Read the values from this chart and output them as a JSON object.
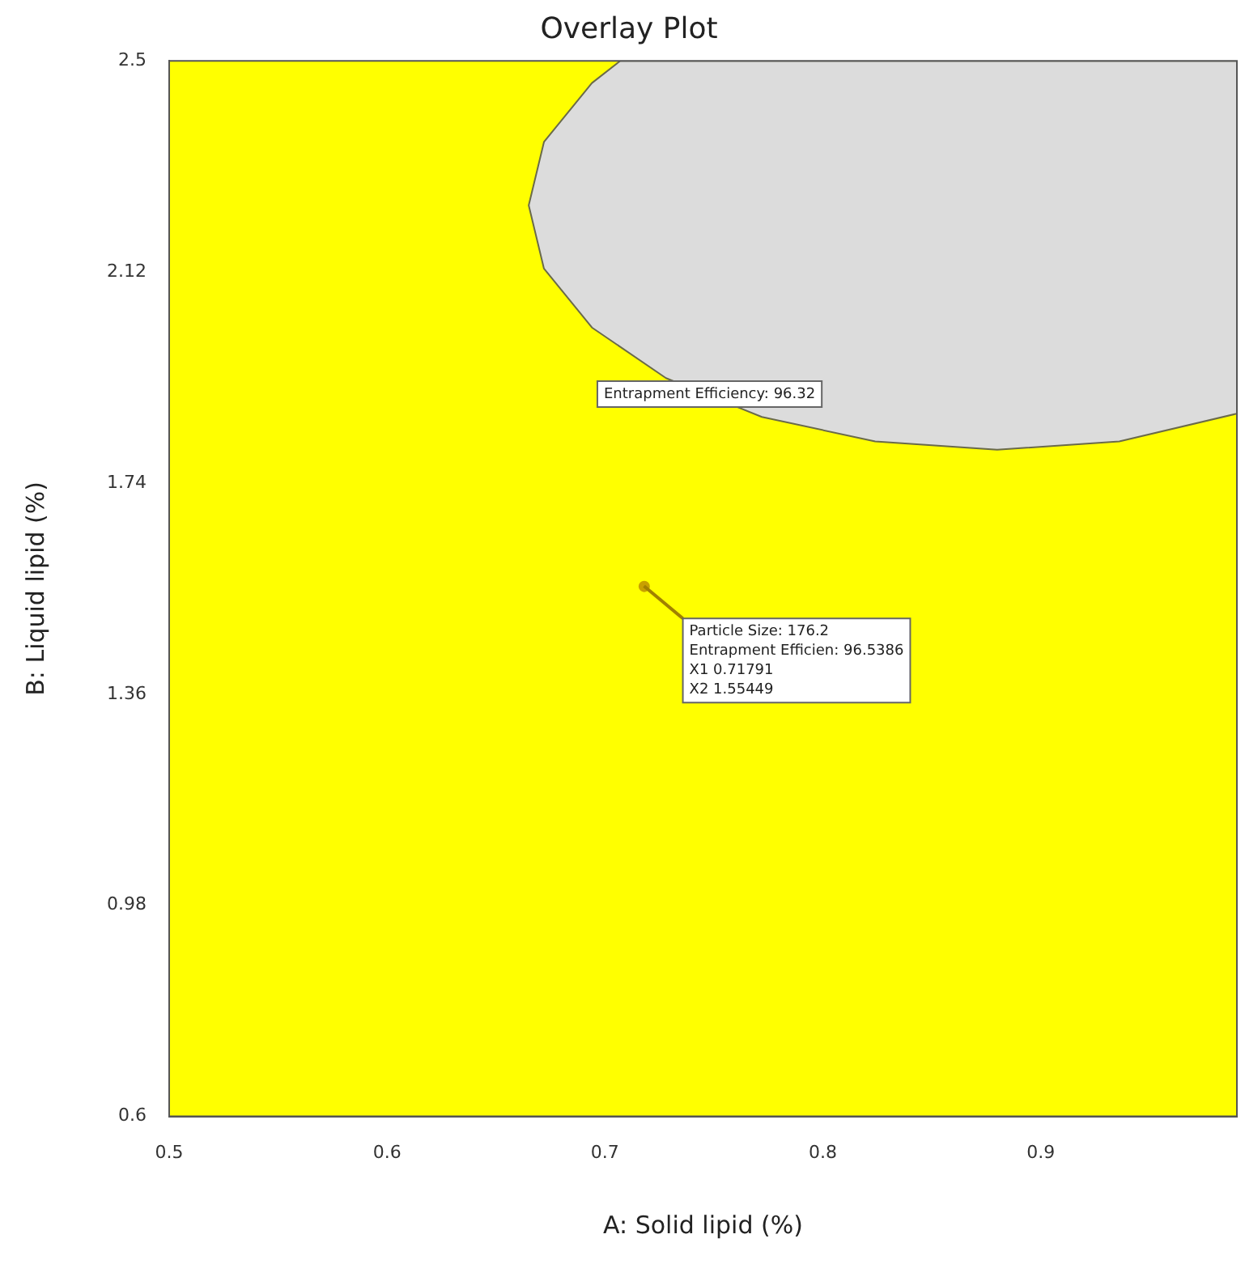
{
  "chart_data": {
    "type": "area",
    "title": "Overlay Plot",
    "xlabel": "A: Solid lipid (%)",
    "ylabel": "B: Liquid lipid (%)",
    "xlim": [
      0.5,
      0.99
    ],
    "xticks": [
      0.5,
      0.6,
      0.7,
      0.8,
      0.9
    ],
    "ylim": [
      0.6,
      2.5
    ],
    "yticks": [
      0.6,
      0.98,
      1.36,
      1.74,
      2.12,
      2.5
    ],
    "grid": false,
    "legend": false,
    "bands": [
      {
        "axis": "y",
        "from": 0.6,
        "to": 2.5,
        "color": "#ffff00"
      }
    ],
    "series": [
      {
        "color": "#dcdcdc",
        "x": [
          0.707,
          0.694,
          0.672,
          0.665,
          0.672,
          0.694,
          0.728,
          0.772,
          0.824,
          0.88,
          0.936,
          0.99,
          0.99,
          0.707
        ],
        "values": [
          2.5,
          2.46,
          2.354,
          2.24,
          2.126,
          2.02,
          1.929,
          1.859,
          1.815,
          1.8,
          1.815,
          1.865,
          2.5,
          2.5
        ]
      },
      {
        "type": "scatter",
        "color": "#c8a000",
        "x": [
          0.718
        ],
        "values": [
          1.554
        ],
        "marker": "circle"
      }
    ],
    "annotations": [
      {
        "text": "Entrapment Efficiency: 96.32",
        "x": 0.748,
        "y": 1.9
      },
      {
        "text": "Particle Size: 176.2\nEntrapment Efficien: 96.5386\nX1 0.71791\nX2 1.55449",
        "x": 0.71791,
        "y": 1.55449
      }
    ]
  }
}
